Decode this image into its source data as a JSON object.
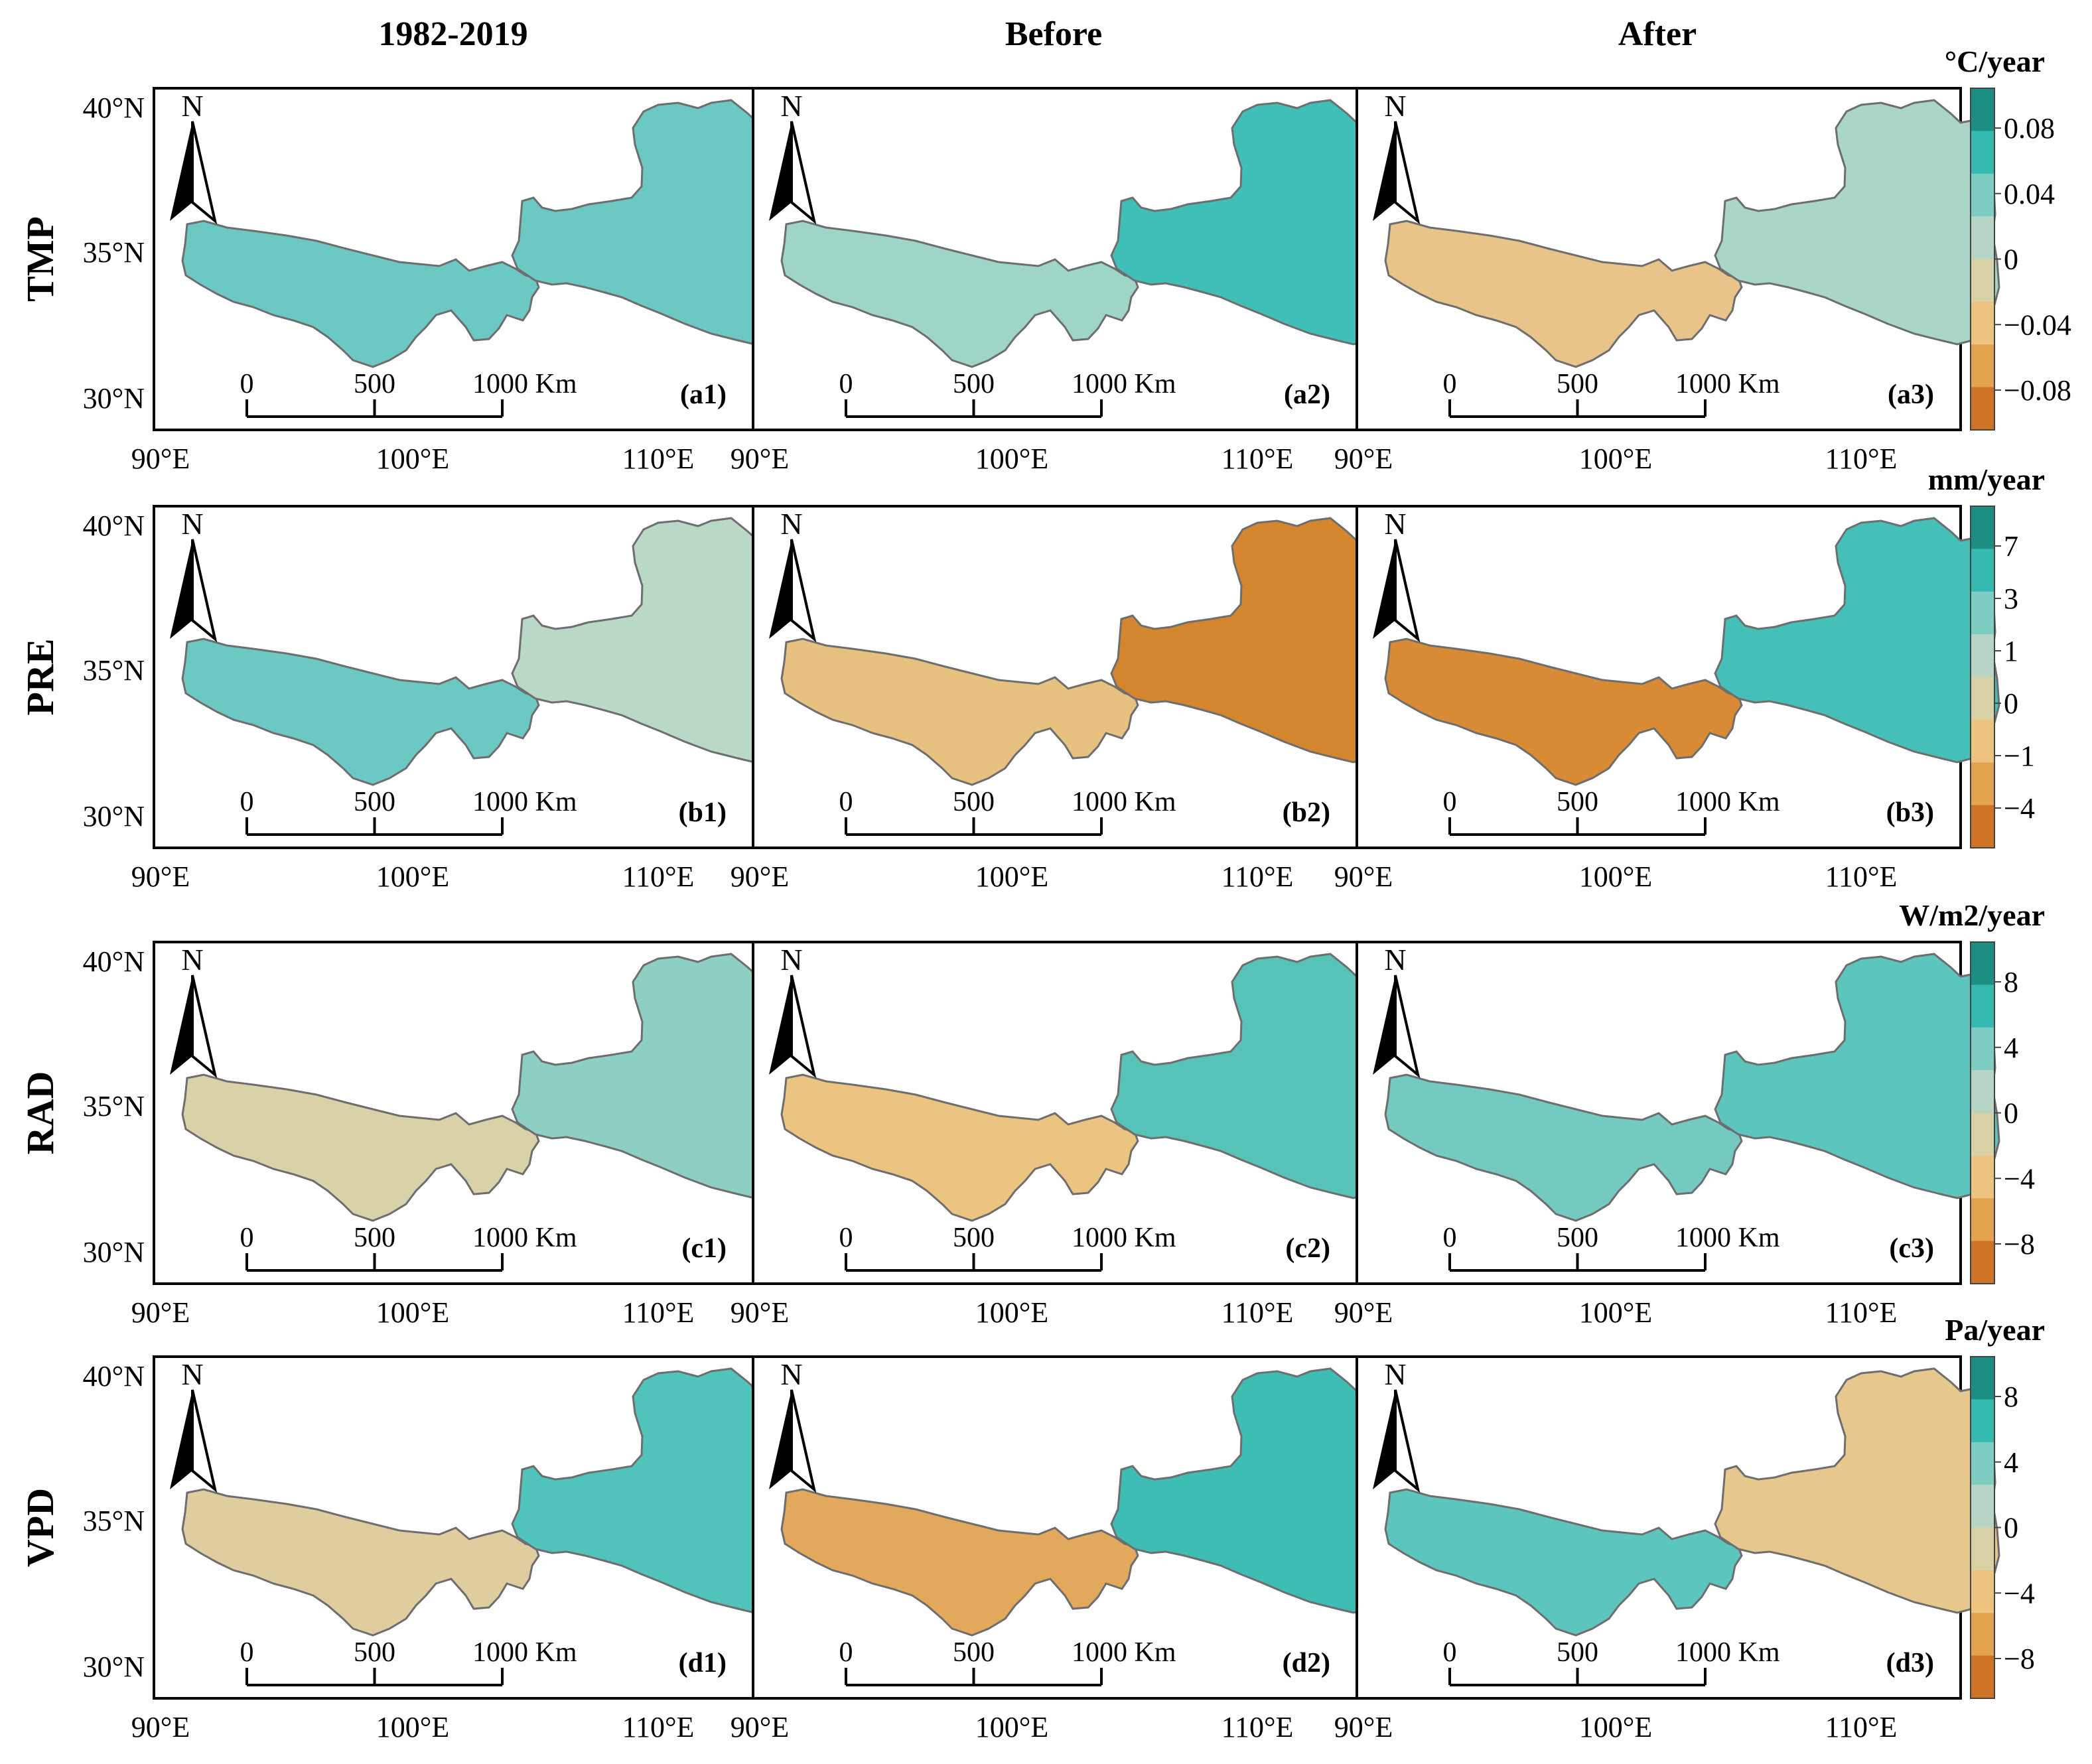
{
  "columns": [
    "1982-2019",
    "Before",
    "After"
  ],
  "rows": [
    {
      "id": "tmp",
      "name": "TMP",
      "unit": "°C/year",
      "colorbar_ticks": [
        "0.08",
        "0.04",
        "0",
        "−0.04",
        "−0.08"
      ],
      "panels": [
        {
          "label": "(a1)",
          "fill_west": "#6cc8c2",
          "fill_east": "#6cc8c2"
        },
        {
          "label": "(a2)",
          "fill_west": "#9fd5c8",
          "fill_east": "#3fbfb7"
        },
        {
          "label": "(a3)",
          "fill_west": "#e8c48a",
          "fill_east": "#a9d6c9"
        }
      ]
    },
    {
      "id": "pre",
      "name": "PRE",
      "unit": "mm/year",
      "colorbar_ticks": [
        "7",
        "3",
        "1",
        "0",
        "−1",
        "−4"
      ],
      "panels": [
        {
          "label": "(b1)",
          "fill_west": "#6cc8c2",
          "fill_east": "#b9d8c6"
        },
        {
          "label": "(b2)",
          "fill_west": "#e6c17f",
          "fill_east": "#d4862f"
        },
        {
          "label": "(b3)",
          "fill_west": "#d88a34",
          "fill_east": "#45c0b8"
        }
      ]
    },
    {
      "id": "rad",
      "name": "RAD",
      "unit": "W/m2/year",
      "colorbar_ticks": [
        "8",
        "4",
        "0",
        "−4",
        "−8"
      ],
      "panels": [
        {
          "label": "(c1)",
          "fill_west": "#d9d2a8",
          "fill_east": "#8ecfc4"
        },
        {
          "label": "(c2)",
          "fill_west": "#ecc481",
          "fill_east": "#57c2b8"
        },
        {
          "label": "(c3)",
          "fill_west": "#74c9c1",
          "fill_east": "#5cc5bd"
        }
      ]
    },
    {
      "id": "vpd",
      "name": "VPD",
      "unit": "Pa/year",
      "colorbar_ticks": [
        "8",
        "4",
        "0",
        "−4",
        "−8"
      ],
      "panels": [
        {
          "label": "(d1)",
          "fill_west": "#dfcda0",
          "fill_east": "#50c3bb"
        },
        {
          "label": "(d2)",
          "fill_west": "#e2a85c",
          "fill_east": "#3dbdb4"
        },
        {
          "label": "(d3)",
          "fill_west": "#5cc5bd",
          "fill_east": "#e6c88f"
        }
      ]
    }
  ],
  "lat_labels": [
    "40°N",
    "35°N",
    "30°N"
  ],
  "lon_labels": [
    "90°E",
    "100°E",
    "110°E"
  ],
  "scale_bar": {
    "labels": [
      "0",
      "500",
      "1000 Km"
    ]
  },
  "north_label": "N",
  "colorbar_colors": [
    "#1d8f82",
    "#34bab0",
    "#7ecdc3",
    "#b6d5c4",
    "#d8d1a6",
    "#ecc47f",
    "#e3a34f",
    "#cf7326"
  ],
  "outline_color": "#6e6e6e"
}
